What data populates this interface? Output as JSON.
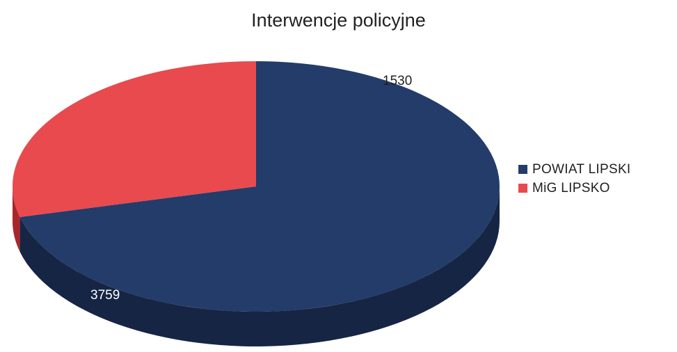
{
  "chart_data": {
    "type": "pie",
    "style": "3d",
    "title": "Interwencje policyjne",
    "slices": [
      {
        "label": "POWIAT LIPSKI",
        "value": 3759,
        "color": "#233c6a",
        "side_color": "#162544"
      },
      {
        "label": "MiG LIPSKO",
        "value": 1530,
        "color": "#e84a4e",
        "side_color": "#a8272b"
      }
    ],
    "legend_position": "right",
    "data_labels": [
      "3759",
      "1530"
    ]
  }
}
